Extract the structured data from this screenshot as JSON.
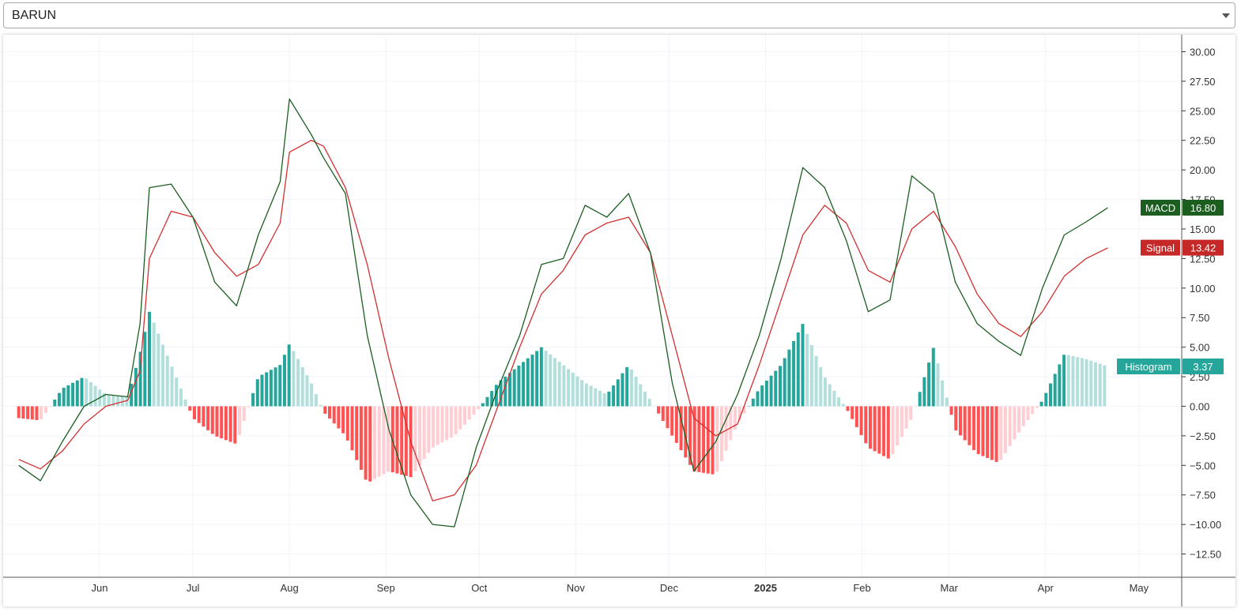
{
  "selector": {
    "value": "BARUN"
  },
  "chart_data": {
    "type": "line",
    "title": "",
    "xlabel": "",
    "ylabel": "",
    "ylim": [
      -14.0,
      30.5
    ],
    "y_ticks": [
      "30.00",
      "27.50",
      "25.00",
      "22.50",
      "20.00",
      "17.50",
      "15.00",
      "12.50",
      "10.00",
      "7.50",
      "5.00",
      "2.50",
      "0.00",
      "−2.50",
      "−5.00",
      "−7.50",
      "−10.00",
      "−12.50"
    ],
    "x_ticks": [
      {
        "label": "Jun",
        "bold": false,
        "at": "2024-06-01"
      },
      {
        "label": "Jul",
        "bold": false,
        "at": "2024-07-01"
      },
      {
        "label": "Aug",
        "bold": false,
        "at": "2024-08-01"
      },
      {
        "label": "Sep",
        "bold": false,
        "at": "2024-09-01"
      },
      {
        "label": "Oct",
        "bold": false,
        "at": "2024-10-01"
      },
      {
        "label": "Nov",
        "bold": false,
        "at": "2024-11-01"
      },
      {
        "label": "Dec",
        "bold": false,
        "at": "2024-12-01"
      },
      {
        "label": "2025",
        "bold": true,
        "at": "2025-01-01"
      },
      {
        "label": "Feb",
        "bold": false,
        "at": "2025-02-01"
      },
      {
        "label": "Mar",
        "bold": false,
        "at": "2025-03-01"
      },
      {
        "label": "Apr",
        "bold": false,
        "at": "2025-04-01"
      },
      {
        "label": "May",
        "bold": false,
        "at": "2025-05-01"
      }
    ],
    "grid": true,
    "colors": {
      "macd": "#1b5e20",
      "signal": "#d32f2f",
      "hist_pos_strong": "#26a69a",
      "hist_pos_weak": "#b2dfdb",
      "hist_neg_strong": "#ff5252",
      "hist_neg_weak": "#ffcdd2",
      "histogram_badge": "#26a69a"
    },
    "series": [
      {
        "name": "MACD",
        "last_value": "16.80",
        "x": [
          "2024-05-06",
          "2024-05-13",
          "2024-05-20",
          "2024-05-27",
          "2024-06-03",
          "2024-06-10",
          "2024-06-14",
          "2024-06-17",
          "2024-06-24",
          "2024-07-01",
          "2024-07-08",
          "2024-07-15",
          "2024-07-22",
          "2024-07-29",
          "2024-08-01",
          "2024-08-08",
          "2024-08-12",
          "2024-08-19",
          "2024-08-26",
          "2024-09-02",
          "2024-09-09",
          "2024-09-16",
          "2024-09-23",
          "2024-09-30",
          "2024-10-07",
          "2024-10-14",
          "2024-10-21",
          "2024-10-28",
          "2024-11-04",
          "2024-11-11",
          "2024-11-18",
          "2024-11-25",
          "2024-12-02",
          "2024-12-09",
          "2024-12-16",
          "2024-12-23",
          "2024-12-30",
          "2025-01-06",
          "2025-01-13",
          "2025-01-20",
          "2025-01-27",
          "2025-02-03",
          "2025-02-10",
          "2025-02-17",
          "2025-02-24",
          "2025-03-03",
          "2025-03-10",
          "2025-03-17",
          "2025-03-24",
          "2025-03-31",
          "2025-04-07",
          "2025-04-14",
          "2025-04-21"
        ],
        "values": [
          -5.0,
          -6.3,
          -3.0,
          0.0,
          1.0,
          0.8,
          7.0,
          18.5,
          18.8,
          16.0,
          10.5,
          8.5,
          14.5,
          19.0,
          26.0,
          23.0,
          21.0,
          18.0,
          6.0,
          -2.0,
          -7.5,
          -10.0,
          -10.2,
          -3.5,
          1.5,
          6.0,
          12.0,
          12.5,
          17.0,
          16.0,
          18.0,
          13.0,
          2.0,
          -5.5,
          -3.0,
          1.0,
          6.0,
          12.5,
          20.2,
          18.5,
          14.0,
          8.0,
          9.0,
          19.5,
          18.0,
          10.5,
          7.0,
          5.5,
          4.3,
          10.0,
          14.5,
          15.6,
          16.8
        ]
      },
      {
        "name": "Signal",
        "last_value": "13.42",
        "x": [
          "2024-05-06",
          "2024-05-13",
          "2024-05-20",
          "2024-05-27",
          "2024-06-03",
          "2024-06-10",
          "2024-06-14",
          "2024-06-17",
          "2024-06-24",
          "2024-07-01",
          "2024-07-08",
          "2024-07-15",
          "2024-07-22",
          "2024-07-29",
          "2024-08-01",
          "2024-08-08",
          "2024-08-12",
          "2024-08-19",
          "2024-08-26",
          "2024-09-02",
          "2024-09-09",
          "2024-09-16",
          "2024-09-23",
          "2024-09-30",
          "2024-10-07",
          "2024-10-14",
          "2024-10-21",
          "2024-10-28",
          "2024-11-04",
          "2024-11-11",
          "2024-11-18",
          "2024-11-25",
          "2024-12-02",
          "2024-12-09",
          "2024-12-16",
          "2024-12-23",
          "2024-12-30",
          "2025-01-06",
          "2025-01-13",
          "2025-01-20",
          "2025-01-27",
          "2025-02-03",
          "2025-02-10",
          "2025-02-17",
          "2025-02-24",
          "2025-03-03",
          "2025-03-10",
          "2025-03-17",
          "2025-03-24",
          "2025-03-31",
          "2025-04-07",
          "2025-04-14",
          "2025-04-21"
        ],
        "values": [
          -4.5,
          -5.3,
          -3.8,
          -1.5,
          0.0,
          0.5,
          3.0,
          12.5,
          16.5,
          16.0,
          13.0,
          11.0,
          12.0,
          15.5,
          21.5,
          22.5,
          22.0,
          18.5,
          12.0,
          4.0,
          -3.0,
          -8.0,
          -7.5,
          -5.0,
          0.0,
          5.0,
          9.5,
          11.5,
          14.5,
          15.5,
          16.0,
          13.0,
          6.0,
          -1.0,
          -2.5,
          -1.5,
          3.5,
          9.0,
          14.5,
          17.0,
          15.5,
          11.5,
          10.5,
          15.0,
          16.5,
          13.5,
          9.5,
          7.0,
          5.9,
          8.0,
          11.0,
          12.5,
          13.4
        ]
      },
      {
        "name": "Histogram",
        "last_value": "3.37",
        "x": [
          "2024-05-06",
          "2024-05-13",
          "2024-05-20",
          "2024-05-27",
          "2024-06-03",
          "2024-06-10",
          "2024-06-14",
          "2024-06-17",
          "2024-06-24",
          "2024-07-01",
          "2024-07-08",
          "2024-07-15",
          "2024-07-22",
          "2024-07-29",
          "2024-08-01",
          "2024-08-08",
          "2024-08-12",
          "2024-08-19",
          "2024-08-26",
          "2024-09-02",
          "2024-09-09",
          "2024-09-16",
          "2024-09-23",
          "2024-09-30",
          "2024-10-07",
          "2024-10-14",
          "2024-10-21",
          "2024-10-28",
          "2024-11-04",
          "2024-11-11",
          "2024-11-18",
          "2024-11-25",
          "2024-12-02",
          "2024-12-09",
          "2024-12-16",
          "2024-12-23",
          "2024-12-30",
          "2025-01-06",
          "2025-01-13",
          "2025-01-20",
          "2025-01-27",
          "2025-02-03",
          "2025-02-10",
          "2025-02-17",
          "2025-02-24",
          "2025-03-03",
          "2025-03-10",
          "2025-03-17",
          "2025-03-24",
          "2025-03-31",
          "2025-04-07",
          "2025-04-14",
          "2025-04-21"
        ],
        "values": [
          -1.0,
          -1.2,
          1.5,
          2.5,
          1.0,
          0.8,
          4.5,
          8.0,
          3.5,
          -1.0,
          -2.5,
          -3.2,
          2.5,
          3.5,
          5.3,
          2.0,
          -0.5,
          -2.5,
          -6.5,
          -5.5,
          -6.0,
          -3.5,
          -2.5,
          -0.5,
          2.0,
          3.5,
          5.0,
          3.5,
          2.0,
          1.0,
          3.5,
          0.5,
          -2.5,
          -5.5,
          -5.8,
          -1.5,
          1.5,
          3.5,
          7.0,
          2.5,
          -0.2,
          -3.5,
          -4.5,
          -1.0,
          5.0,
          -2.0,
          -4.0,
          -4.8,
          -2.0,
          0.5,
          4.4,
          4.0,
          3.37
        ]
      }
    ]
  }
}
